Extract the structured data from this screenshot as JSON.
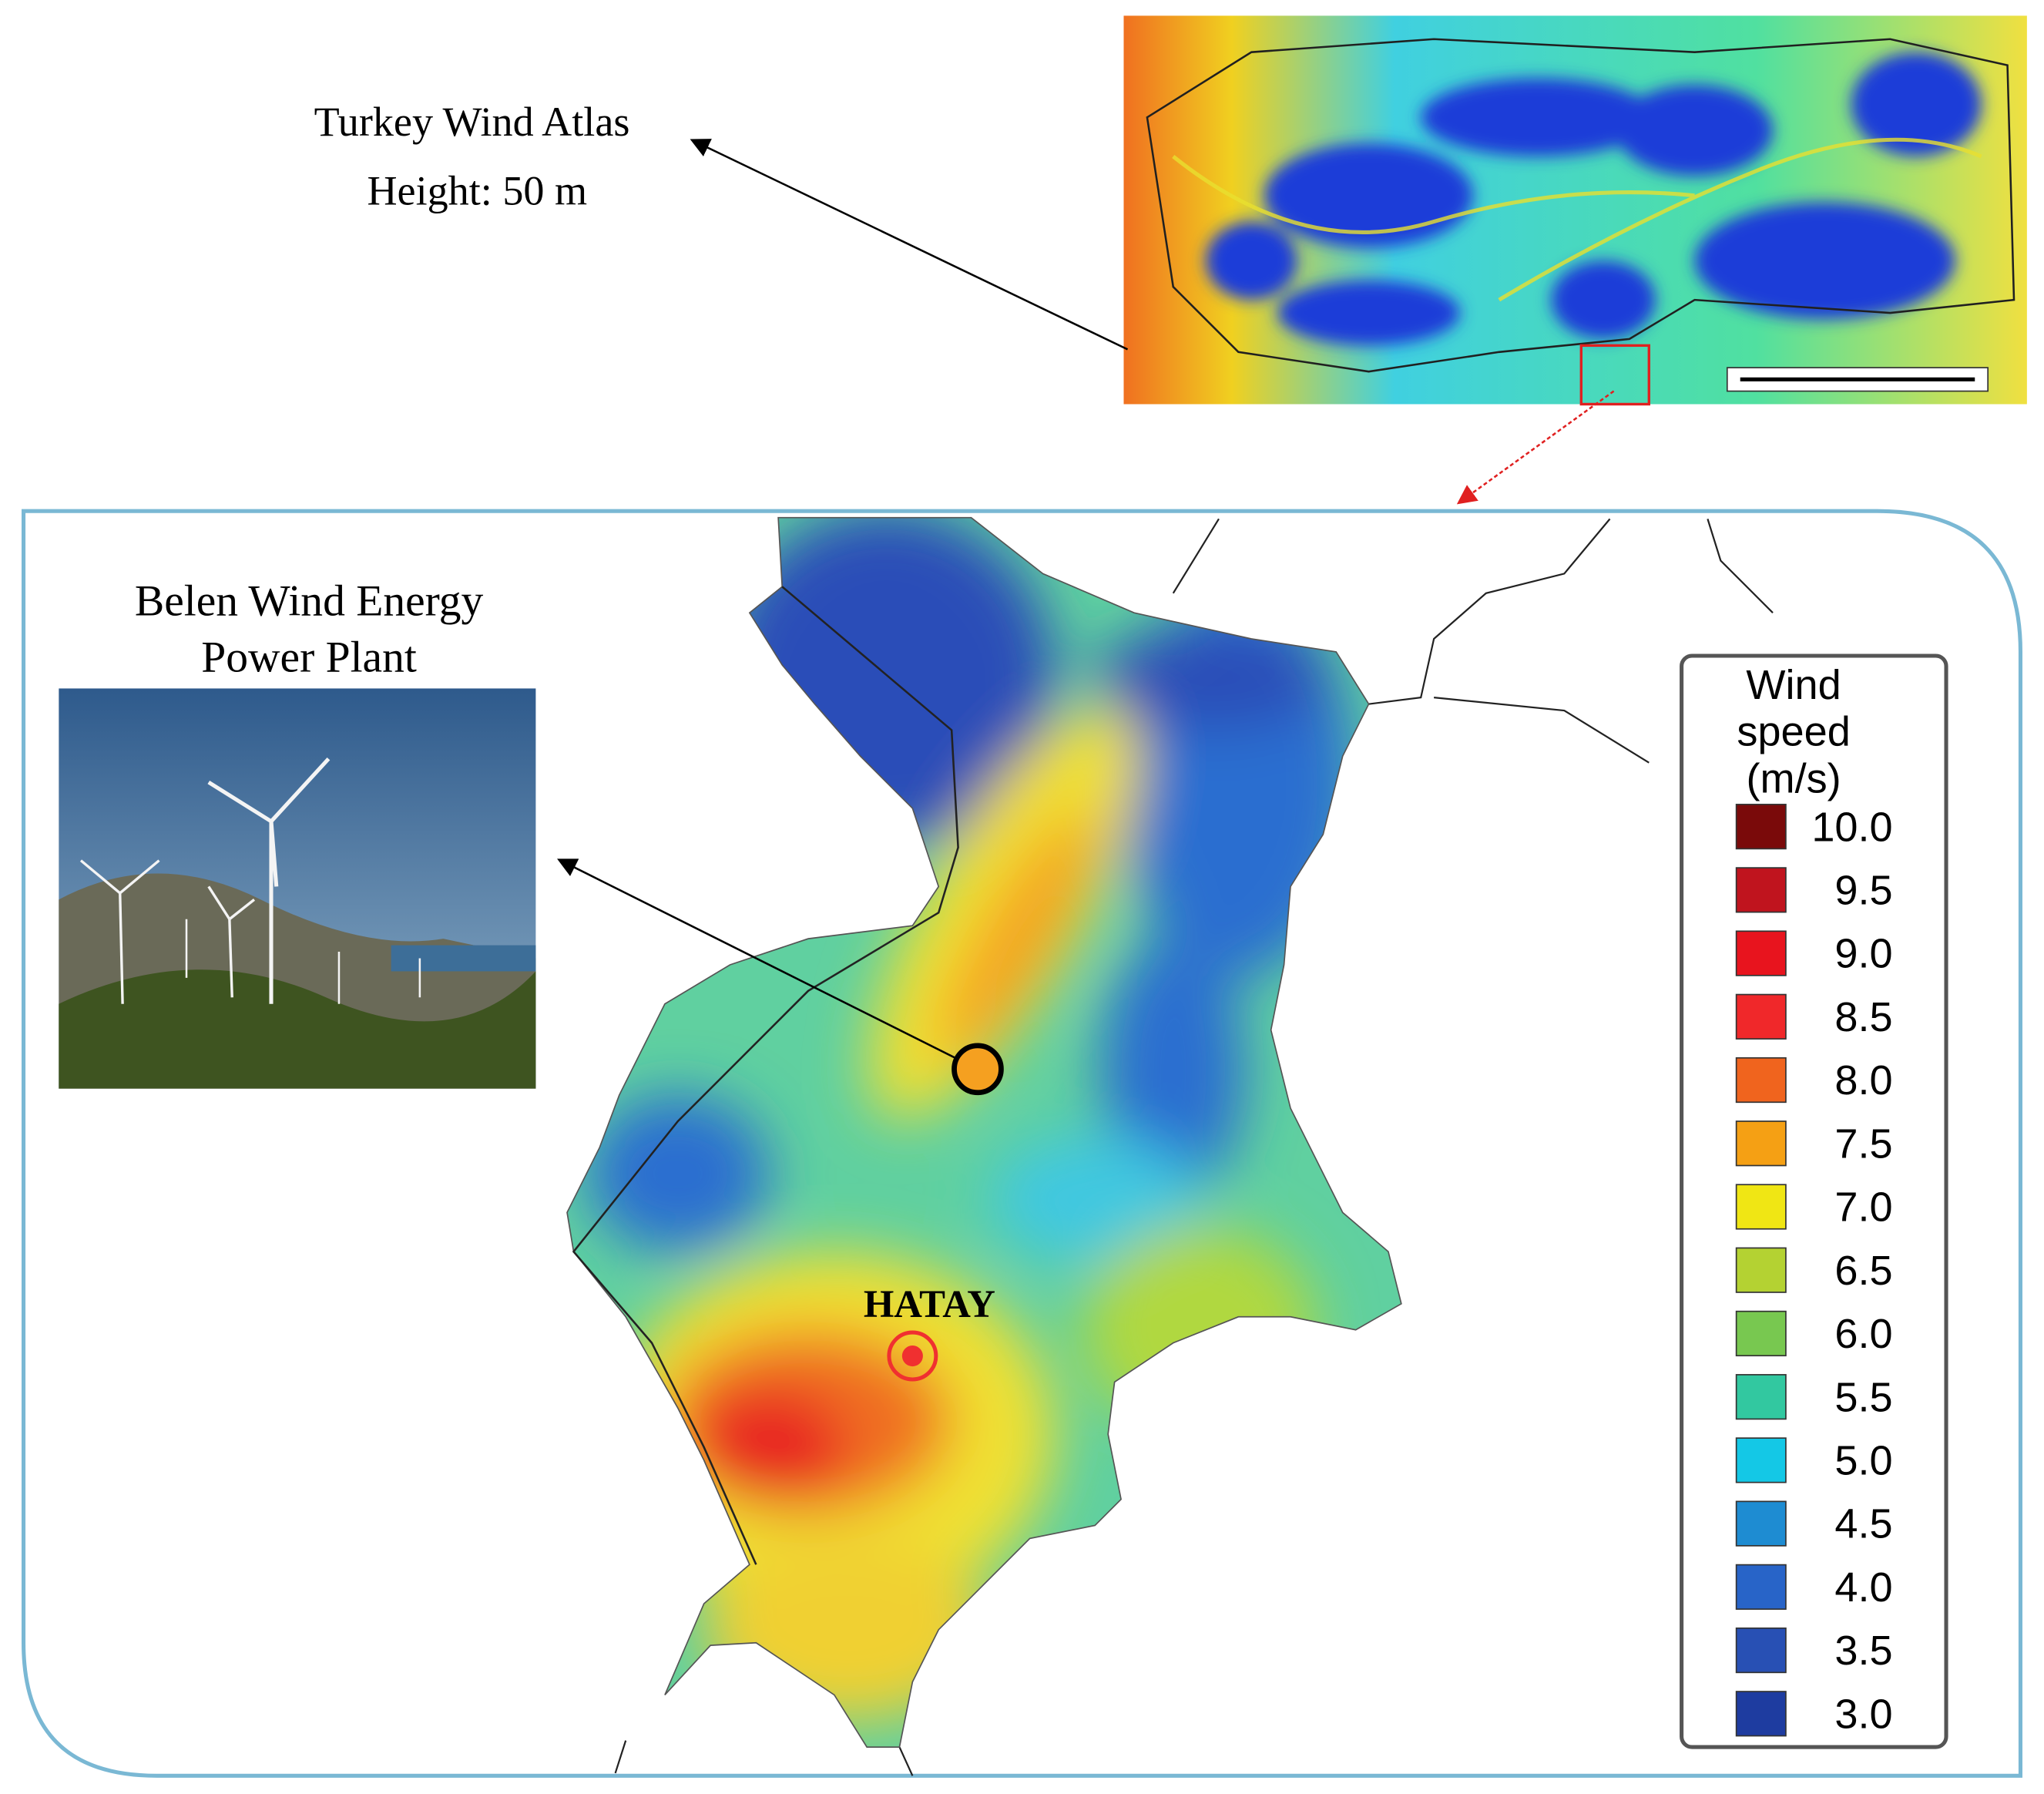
{
  "atlas": {
    "title": "Turkey Wind Atlas",
    "height": "Height: 50 m"
  },
  "plant": {
    "title_lines": [
      "Belen Wind Energy",
      "Power Plant"
    ]
  },
  "city": "HATAY",
  "legend": {
    "title_lines": [
      "Wind",
      "speed",
      "(m/s)"
    ],
    "items": [
      {
        "label": "10.0",
        "color": "#7a0a0a"
      },
      {
        "label": "9.5",
        "color": "#c0141e"
      },
      {
        "label": "9.0",
        "color": "#e8141e"
      },
      {
        "label": "8.5",
        "color": "#f0282a"
      },
      {
        "label": "8.0",
        "color": "#f0641e"
      },
      {
        "label": "7.5",
        "color": "#f5a014"
      },
      {
        "label": "7.0",
        "color": "#f0e614"
      },
      {
        "label": "6.5",
        "color": "#b4d232"
      },
      {
        "label": "6.0",
        "color": "#78c850"
      },
      {
        "label": "5.5",
        "color": "#32c8a0"
      },
      {
        "label": "5.0",
        "color": "#14c8e6"
      },
      {
        "label": "4.5",
        "color": "#1e8cd2"
      },
      {
        "label": "4.0",
        "color": "#2864c8"
      },
      {
        "label": "3.5",
        "color": "#2850b4"
      },
      {
        "label": "3.0",
        "color": "#1e3ca0"
      }
    ]
  }
}
